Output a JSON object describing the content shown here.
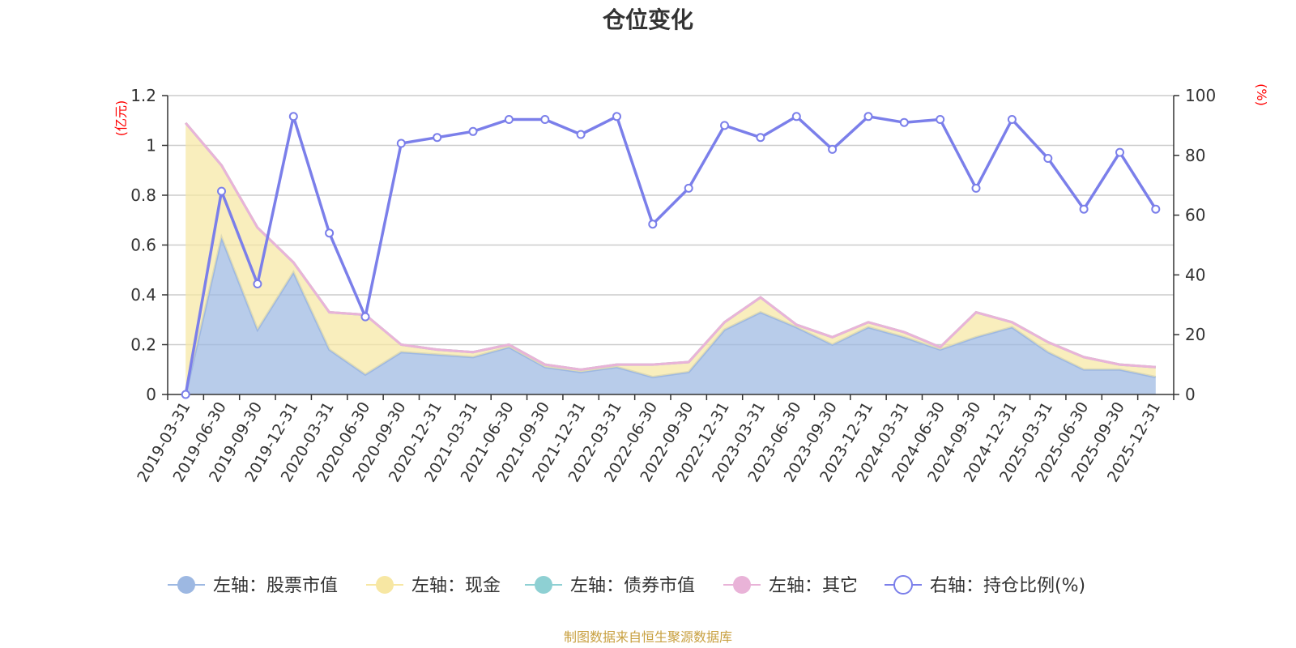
{
  "chart_data": {
    "type": "area",
    "title": "仓位变化",
    "left_axis_unit": "(亿元)",
    "right_axis_unit": "(%)",
    "left_ylim": [
      0,
      1.2
    ],
    "left_ticks": [
      "0",
      "0.2",
      "0.4",
      "0.6",
      "0.8",
      "1",
      "1.2"
    ],
    "right_ylim": [
      0,
      100
    ],
    "right_ticks": [
      "0",
      "20",
      "40",
      "60",
      "80",
      "100"
    ],
    "grid": true,
    "legend_position": "bottom",
    "categories": [
      "2019-03-31",
      "2019-06-30",
      "2019-09-30",
      "2019-12-31",
      "2020-03-31",
      "2020-06-30",
      "2020-09-30",
      "2020-12-31",
      "2021-03-31",
      "2021-06-30",
      "2021-09-30",
      "2021-12-31",
      "2022-03-31",
      "2022-06-30",
      "2022-09-30",
      "2022-12-31",
      "2023-03-31",
      "2023-06-30",
      "2023-09-30",
      "2023-12-31",
      "2024-03-31",
      "2024-06-30",
      "2024-09-30",
      "2024-12-31",
      "2025-03-31",
      "2025-06-30",
      "2025-09-30",
      "2025-12-31"
    ],
    "series": [
      {
        "name": "左轴：股票市值",
        "axis": "left",
        "color": "#9db8e2",
        "values": [
          0,
          0.63,
          0.26,
          0.49,
          0.18,
          0.08,
          0.17,
          0.16,
          0.15,
          0.19,
          0.11,
          0.09,
          0.11,
          0.07,
          0.09,
          0.26,
          0.33,
          0.27,
          0.2,
          0.27,
          0.23,
          0.18,
          0.23,
          0.27,
          0.17,
          0.1,
          0.1,
          0.07
        ]
      },
      {
        "name": "左轴：现金",
        "axis": "left",
        "color": "#f7e7a3",
        "values": [
          1.09,
          0.29,
          0.41,
          0.04,
          0.15,
          0.24,
          0.03,
          0.02,
          0.02,
          0.01,
          0.01,
          0.01,
          0.01,
          0.05,
          0.04,
          0.03,
          0.06,
          0.01,
          0.03,
          0.02,
          0.02,
          0.01,
          0.1,
          0.02,
          0.04,
          0.05,
          0.02,
          0.04
        ]
      },
      {
        "name": "左轴：债券市值",
        "axis": "left",
        "color": "#8ed0d3",
        "values": [
          0,
          0,
          0,
          0,
          0,
          0,
          0,
          0,
          0,
          0,
          0,
          0,
          0,
          0,
          0,
          0,
          0,
          0,
          0,
          0,
          0,
          0,
          0,
          0,
          0,
          0,
          0,
          0
        ]
      },
      {
        "name": "左轴：其它",
        "axis": "left",
        "color": "#e9b3d8",
        "values": [
          0,
          0,
          0,
          0,
          0,
          0,
          0,
          0,
          0,
          0,
          0,
          0,
          0,
          0,
          0,
          0,
          0,
          0,
          0,
          0,
          0,
          0,
          0,
          0,
          0,
          0,
          0,
          0
        ]
      },
      {
        "name": "右轴：持仓比例(%)",
        "axis": "right",
        "color": "#7b7fea",
        "values": [
          0,
          68,
          37,
          93,
          54,
          26,
          84,
          86,
          88,
          92,
          92,
          87,
          93,
          57,
          69,
          90,
          86,
          93,
          82,
          93,
          91,
          92,
          69,
          92,
          79,
          62,
          81,
          62
        ]
      }
    ],
    "source_note": "制图数据来自恒生聚源数据库"
  }
}
